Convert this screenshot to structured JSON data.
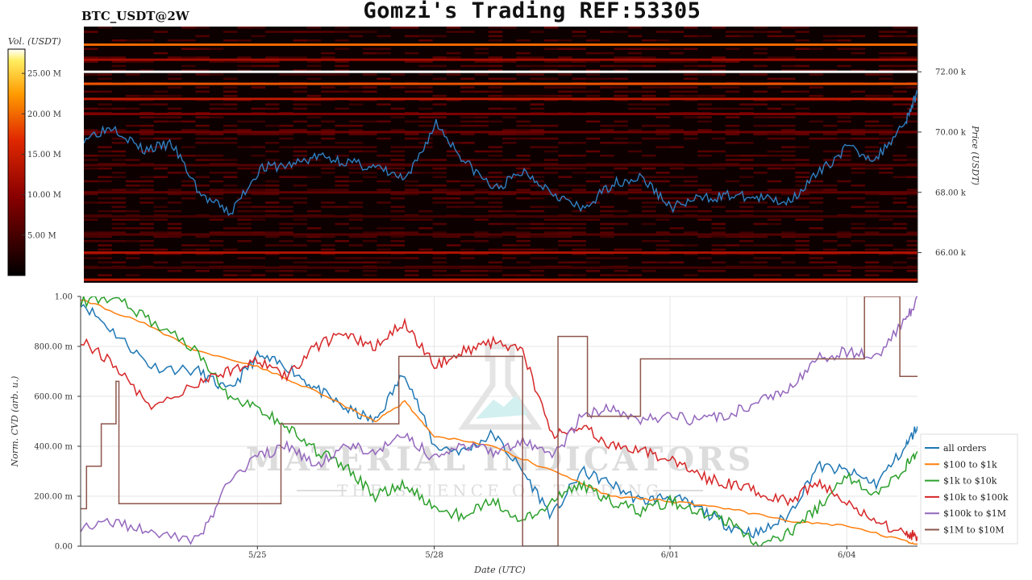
{
  "header": {
    "title": "Gomzi's Trading REF:53305",
    "symbol": "BTC_USDT@2W"
  },
  "watermark": {
    "line1": "MATERIAL INDICATORS",
    "line2": "THE SCIENCE OF TRADING"
  },
  "colors": {
    "price_line": "#2f7fc1",
    "heatmap_low": "#000000",
    "heatmap_mid": "#cc2200",
    "heatmap_high": "#ffffff"
  },
  "chart_data": [
    {
      "type": "heatmap",
      "name": "orderbook-heatmap",
      "colorbar_label": "Vol. (USDT)",
      "colorbar_ticks": [
        "5.00 M",
        "10.00 M",
        "15.00 M",
        "20.00 M",
        "25.00 M"
      ],
      "colorbar_values": [
        5,
        10,
        15,
        20,
        25
      ],
      "colorbar_range": [
        0,
        28
      ],
      "ylabel": "Price (USDT)",
      "y_ticks": [
        "66.00 k",
        "72.00 k",
        "70.00 k",
        "68.00 k"
      ],
      "y_tick_values": [
        66000,
        72000,
        70000,
        68000
      ],
      "ylim": [
        65000,
        73500
      ],
      "price_series": {
        "name": "price",
        "x": [
          0,
          0.5,
          1,
          1.5,
          2,
          2.5,
          3,
          3.5,
          4,
          4.5,
          5,
          5.5,
          6,
          6.5,
          7,
          7.5,
          8,
          8.5,
          9,
          9.5,
          10,
          10.5,
          11,
          11.5,
          12,
          12.5,
          13,
          13.5,
          14,
          14.2
        ],
        "values": [
          69800,
          70200,
          69400,
          69600,
          67900,
          67300,
          68800,
          68900,
          69200,
          69000,
          68800,
          68400,
          70300,
          69000,
          68100,
          68700,
          68000,
          67400,
          68300,
          68500,
          67500,
          67800,
          67900,
          67800,
          67700,
          68600,
          69500,
          69100,
          70400,
          71300
        ]
      },
      "bands": [
        {
          "price": 72900,
          "intensity": 20
        },
        {
          "price": 72400,
          "intensity": 12
        },
        {
          "price": 72000,
          "intensity": 28
        },
        {
          "price": 71600,
          "intensity": 19
        },
        {
          "price": 71100,
          "intensity": 14
        },
        {
          "price": 70600,
          "intensity": 9
        },
        {
          "price": 70000,
          "intensity": 8
        },
        {
          "price": 68900,
          "intensity": 6
        },
        {
          "price": 68000,
          "intensity": 7
        },
        {
          "price": 67200,
          "intensity": 5
        },
        {
          "price": 66600,
          "intensity": 6
        },
        {
          "price": 66000,
          "intensity": 13
        },
        {
          "price": 65500,
          "intensity": 5
        },
        {
          "price": 65100,
          "intensity": 14
        }
      ]
    },
    {
      "type": "line",
      "name": "normalized-cvd",
      "xlabel": "Date (UTC)",
      "ylabel": "Norm. CVD (arb. u.)",
      "x_ticks": [
        "5/25",
        "5/28",
        "6/01",
        "6/04"
      ],
      "x_tick_values": [
        3,
        6,
        10,
        13
      ],
      "xlim": [
        0,
        14.2
      ],
      "y_ticks": [
        "0.00",
        "200.00 m",
        "400.00 m",
        "600.00 m",
        "800.00 m",
        "1.00"
      ],
      "y_tick_values": [
        0,
        0.2,
        0.4,
        0.6,
        0.8,
        1.0
      ],
      "ylim": [
        0,
        1.0
      ],
      "grid": true,
      "legend_position": "bottom-right",
      "series": [
        {
          "name": "all orders",
          "color": "#1f77b4",
          "x": [
            0,
            0.6,
            1.2,
            2,
            2.5,
            3,
            3.5,
            4,
            4.5,
            5,
            5.5,
            6,
            6.5,
            7,
            7.5,
            8,
            8.5,
            9,
            9.5,
            10,
            10.5,
            11,
            11.5,
            12,
            12.5,
            13,
            13.5,
            14,
            14.2
          ],
          "values": [
            0.98,
            0.85,
            0.72,
            0.7,
            0.62,
            0.76,
            0.72,
            0.63,
            0.55,
            0.5,
            0.7,
            0.4,
            0.38,
            0.45,
            0.3,
            0.12,
            0.3,
            0.25,
            0.18,
            0.2,
            0.15,
            0.08,
            0.05,
            0.12,
            0.32,
            0.3,
            0.25,
            0.4,
            0.48
          ]
        },
        {
          "name": "$100 to $1k",
          "color": "#ff7f0e",
          "x": [
            0,
            1,
            2,
            3,
            4,
            5,
            5.5,
            6,
            7,
            8,
            9,
            10,
            11,
            12,
            13,
            14,
            14.2
          ],
          "values": [
            0.99,
            0.9,
            0.78,
            0.72,
            0.62,
            0.5,
            0.58,
            0.44,
            0.4,
            0.3,
            0.2,
            0.18,
            0.15,
            0.1,
            0.08,
            0.02,
            0.01
          ]
        },
        {
          "name": "$1k to $10k",
          "color": "#2ca02c",
          "x": [
            0,
            0.6,
            1.2,
            2,
            2.5,
            3,
            3.5,
            4,
            4.5,
            5,
            5.5,
            6,
            6.5,
            7,
            7.5,
            8,
            8.5,
            9,
            9.5,
            10,
            10.5,
            11,
            11.5,
            12,
            12.5,
            13,
            13.5,
            14,
            14.2
          ],
          "values": [
            0.98,
            1.0,
            0.9,
            0.78,
            0.6,
            0.55,
            0.48,
            0.38,
            0.32,
            0.2,
            0.25,
            0.15,
            0.12,
            0.18,
            0.1,
            0.18,
            0.25,
            0.18,
            0.14,
            0.18,
            0.14,
            0.1,
            0.0,
            0.05,
            0.15,
            0.28,
            0.2,
            0.32,
            0.38
          ]
        },
        {
          "name": "$10k to $100k",
          "color": "#d62728",
          "x": [
            0,
            0.6,
            1.2,
            2,
            2.5,
            3,
            3.5,
            4,
            4.5,
            5,
            5.5,
            6,
            6.5,
            7,
            7.5,
            8,
            8.5,
            9,
            9.5,
            10,
            10.5,
            11,
            11.5,
            12,
            12.5,
            13,
            13.5,
            14,
            14.2
          ],
          "values": [
            0.83,
            0.72,
            0.55,
            0.65,
            0.7,
            0.75,
            0.68,
            0.8,
            0.85,
            0.8,
            0.9,
            0.72,
            0.78,
            0.82,
            0.78,
            0.45,
            0.48,
            0.4,
            0.38,
            0.35,
            0.28,
            0.25,
            0.22,
            0.18,
            0.25,
            0.18,
            0.1,
            0.05,
            0.04
          ]
        },
        {
          "name": "$100k to $1M",
          "color": "#9467bd",
          "x": [
            0,
            0.6,
            1.2,
            2,
            2.5,
            3,
            3.5,
            4,
            4.5,
            5,
            5.5,
            6,
            6.5,
            7,
            7.5,
            8,
            8.5,
            9,
            9.5,
            10,
            10.5,
            11,
            11.5,
            12,
            12.5,
            13,
            13.5,
            14,
            14.2
          ],
          "values": [
            0.08,
            0.1,
            0.05,
            0.02,
            0.25,
            0.36,
            0.4,
            0.32,
            0.4,
            0.38,
            0.45,
            0.35,
            0.4,
            0.38,
            0.42,
            0.35,
            0.52,
            0.55,
            0.5,
            0.52,
            0.5,
            0.53,
            0.58,
            0.62,
            0.75,
            0.78,
            0.76,
            0.9,
            1.0
          ]
        },
        {
          "name": "$1M to $10M",
          "color": "#8c564b",
          "x": [
            0,
            0.1,
            0.1,
            0.35,
            0.35,
            0.6,
            0.6,
            0.65,
            0.65,
            3.4,
            3.4,
            5.4,
            5.4,
            7.5,
            7.5,
            8.1,
            8.1,
            8.6,
            8.6,
            9.5,
            9.5,
            10.5,
            10.5,
            13.3,
            13.3,
            13.9,
            13.9,
            14.2
          ],
          "values": [
            0.15,
            0.15,
            0.32,
            0.32,
            0.49,
            0.49,
            0.66,
            0.66,
            0.17,
            0.17,
            0.49,
            0.49,
            0.76,
            0.76,
            0.0,
            0.0,
            0.84,
            0.84,
            0.52,
            0.52,
            0.75,
            0.75,
            0.75,
            0.75,
            1.0,
            1.0,
            0.68,
            0.68
          ]
        }
      ]
    }
  ]
}
